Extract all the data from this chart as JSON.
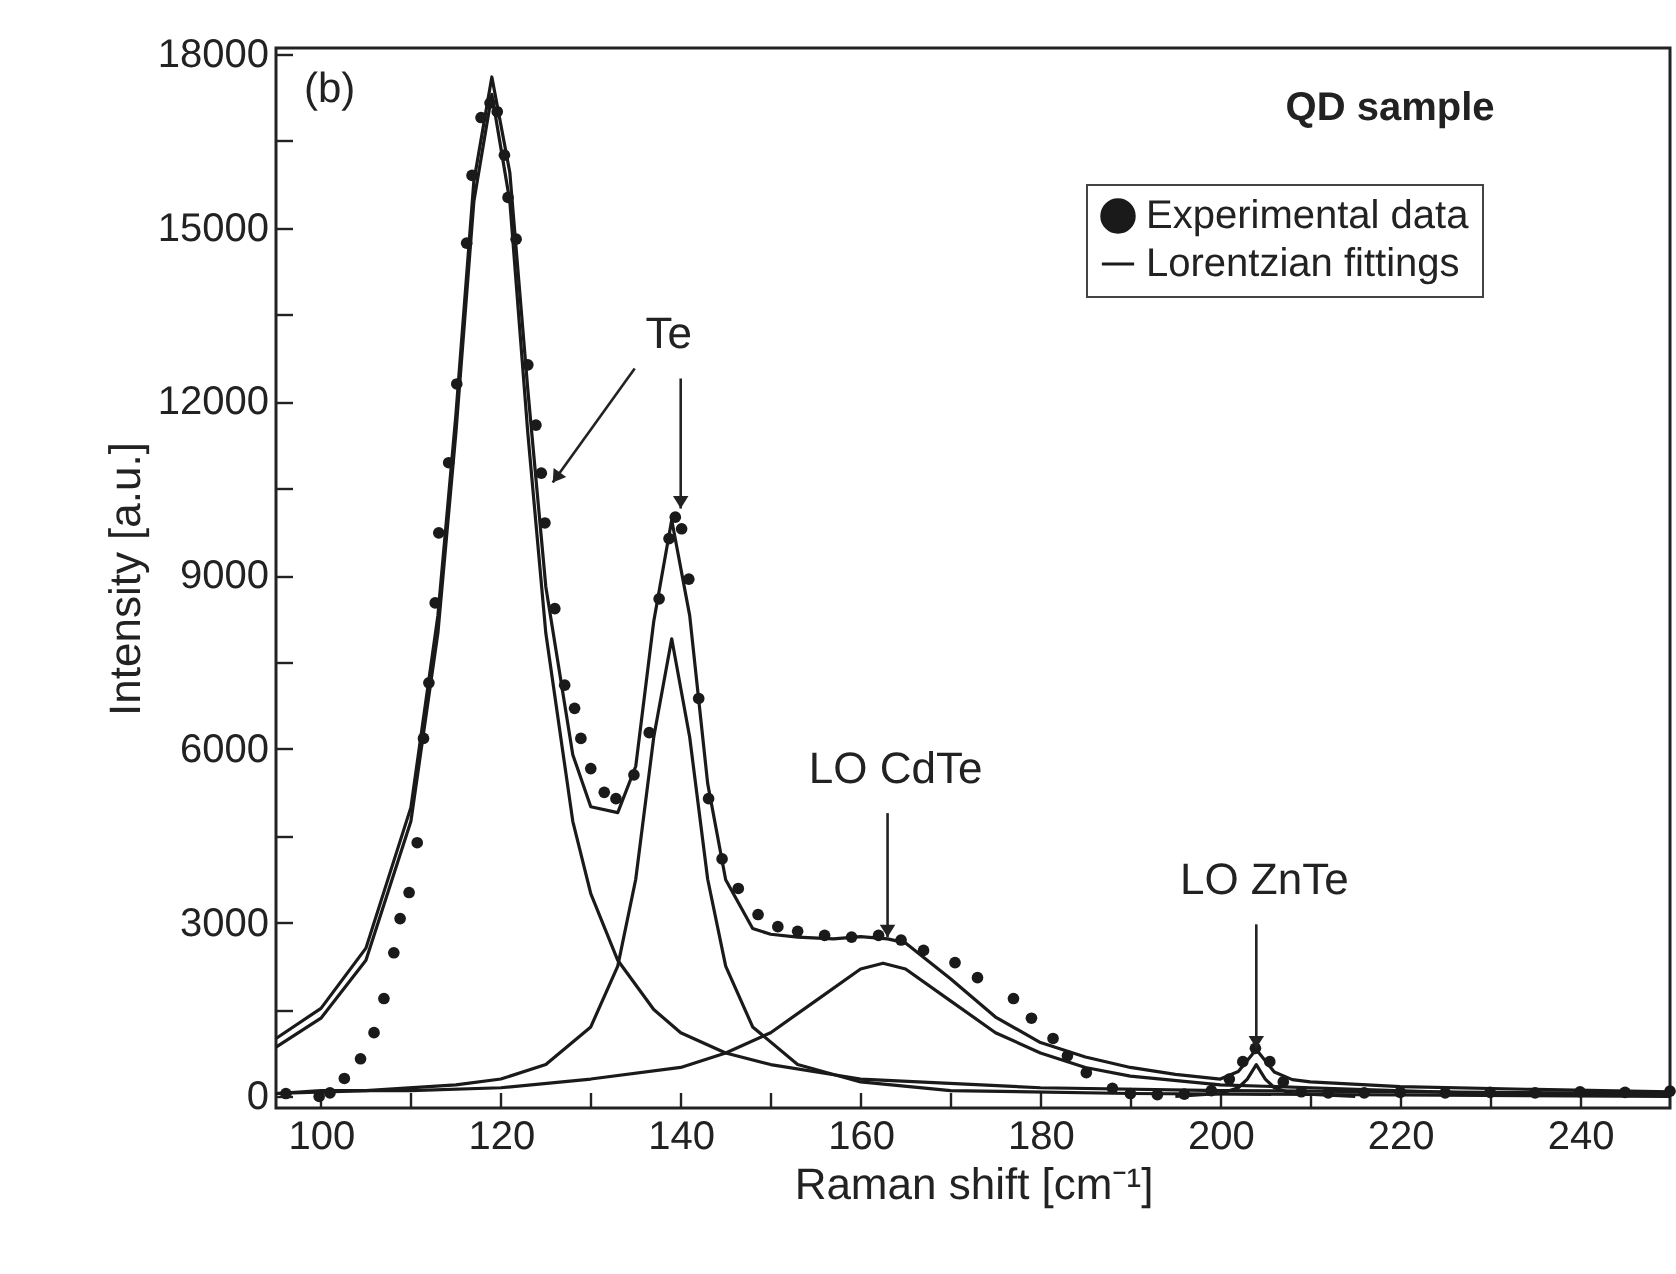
{
  "chart_data": {
    "type": "scatter",
    "xlabel": "Raman shift [cm⁻¹]",
    "ylabel": "Intensity [a.u.]",
    "xlim": [
      95,
      250
    ],
    "ylim": [
      -200,
      18100
    ],
    "xticks": [
      100,
      {
        "value": 110,
        "label": null
      },
      120,
      {
        "value": 130,
        "label": null
      },
      140,
      {
        "value": 150,
        "label": null
      },
      160,
      {
        "value": 170,
        "label": null
      },
      180,
      {
        "value": 190,
        "label": null
      },
      200,
      {
        "value": 210,
        "label": null
      },
      220,
      {
        "value": 230,
        "label": null
      },
      240
    ],
    "yticks": [
      0,
      {
        "value": 1500,
        "label": null
      },
      3000,
      {
        "value": 4500,
        "label": null
      },
      6000,
      {
        "value": 7500,
        "label": null
      },
      9000,
      {
        "value": 10500,
        "label": null
      },
      12000,
      {
        "value": 13500,
        "label": null
      },
      15000,
      {
        "value": 16500,
        "label": null
      },
      18000
    ],
    "legend": "top right",
    "annotations": [
      "(b)",
      "QD sample",
      {
        "text": "Te",
        "x": 140,
        "y": 10150
      },
      {
        "text": "LO CdTe",
        "x": 163,
        "y": 2750
      },
      {
        "text": "LO ZnTe",
        "x": 204,
        "y": 830
      }
    ],
    "series": [
      {
        "name": "Experimental data",
        "marker": "circle",
        "color": "#1a1a1a",
        "x": [
          96.1,
          99.8,
          101,
          102.6,
          104.4,
          105.9,
          107,
          108.1,
          108.8,
          109.8,
          110.7,
          111.4,
          112,
          112.7,
          113.1,
          114.2,
          115.1,
          116.2,
          116.8,
          117.8,
          118.8,
          119.6,
          120.4,
          120.8,
          121.7,
          123,
          123.9,
          124.5,
          124.9,
          126,
          127.1,
          128.2,
          128.9,
          130,
          131.5,
          132.8,
          134.8,
          136.5,
          137.6,
          138.7,
          139.4,
          140.1,
          140.9,
          142,
          143.1,
          144.6,
          146.4,
          148.6,
          150.8,
          153,
          156,
          159,
          162,
          164.5,
          167,
          170.5,
          173,
          177,
          179,
          181.4,
          183,
          185.1,
          188,
          190,
          193,
          196,
          199,
          201,
          202.5,
          203.9,
          205.5,
          207,
          209,
          212,
          216,
          220,
          225,
          230,
          235,
          240,
          245,
          250
        ],
        "values": [
          50,
          0,
          60,
          310,
          650,
          1100,
          1690,
          2480,
          3070,
          3520,
          4380,
          6180,
          7140,
          8520,
          9730,
          10940,
          12300,
          14730,
          15900,
          16900,
          17150,
          17000,
          16250,
          15520,
          14800,
          12630,
          11590,
          10760,
          9900,
          8420,
          7100,
          6700,
          6180,
          5660,
          5250,
          5140,
          5550,
          6280,
          8590,
          9630,
          10000,
          9800,
          8930,
          6870,
          5140,
          4100,
          3590,
          3140,
          2930,
          2850,
          2780,
          2750,
          2780,
          2700,
          2520,
          2310,
          2050,
          1690,
          1350,
          1000,
          700,
          410,
          140,
          50,
          30,
          40,
          100,
          300,
          600,
          830,
          600,
          250,
          80,
          60,
          60,
          70,
          60,
          70,
          60,
          80,
          70,
          90
        ]
      },
      {
        "name": "Lorentzian fittings",
        "type": "line",
        "color": "#1a1a1a",
        "x": [
          95,
          100,
          105,
          110,
          113,
          115,
          117,
          119,
          121,
          123,
          125,
          128,
          130,
          133,
          135,
          137,
          139,
          141,
          143,
          145,
          148,
          150,
          153,
          157,
          160,
          163,
          165,
          170,
          175,
          180,
          185,
          190,
          195,
          200,
          202,
          204,
          206,
          208,
          210,
          220,
          235,
          250
        ],
        "values": [
          1000,
          1520,
          2560,
          4990,
          8300,
          11760,
          15800,
          17600,
          15950,
          12200,
          8800,
          5900,
          5000,
          4900,
          5700,
          8200,
          9950,
          8300,
          5400,
          3740,
          2900,
          2800,
          2750,
          2720,
          2760,
          2720,
          2650,
          2030,
          1370,
          930,
          680,
          500,
          380,
          300,
          430,
          810,
          420,
          290,
          250,
          170,
          120,
          80
        ]
      },
      {
        "type": "line",
        "color": "#1a1a1a",
        "x": [
          95,
          100,
          105,
          110,
          113,
          115,
          117,
          119,
          121,
          123,
          125,
          128,
          130,
          133,
          137,
          140,
          145,
          150,
          160,
          180,
          200,
          250
        ],
        "values": [
          850,
          1350,
          2350,
          4750,
          8000,
          11450,
          15450,
          17300,
          15450,
          11450,
          8000,
          4750,
          3500,
          2350,
          1500,
          1100,
          750,
          550,
          300,
          150,
          100,
          50
        ]
      },
      {
        "type": "line",
        "color": "#1a1a1a",
        "x": [
          95,
          105,
          115,
          120,
          125,
          130,
          133,
          135,
          137,
          139,
          141,
          143,
          145,
          148,
          153,
          160,
          170,
          190,
          250
        ],
        "values": [
          50,
          100,
          200,
          300,
          550,
          1200,
          2250,
          3750,
          6200,
          7900,
          6200,
          3750,
          2250,
          1200,
          550,
          250,
          100,
          50,
          0
        ]
      },
      {
        "type": "line",
        "color": "#1a1a1a",
        "x": [
          95,
          100,
          110,
          120,
          130,
          140,
          145,
          150,
          155,
          160,
          162.5,
          165,
          170,
          175,
          180,
          185,
          190,
          200,
          210,
          230,
          250
        ],
        "values": [
          50,
          100,
          100,
          150,
          300,
          500,
          750,
          1100,
          1650,
          2200,
          2300,
          2200,
          1650,
          1100,
          750,
          500,
          350,
          200,
          150,
          50,
          50
        ]
      },
      {
        "type": "line",
        "color": "#1a1a1a",
        "x": [
          195,
          200,
          202,
          203,
          204,
          205,
          206,
          208,
          215
        ],
        "values": [
          0,
          50,
          150,
          300,
          550,
          300,
          150,
          50,
          0
        ]
      }
    ]
  }
}
